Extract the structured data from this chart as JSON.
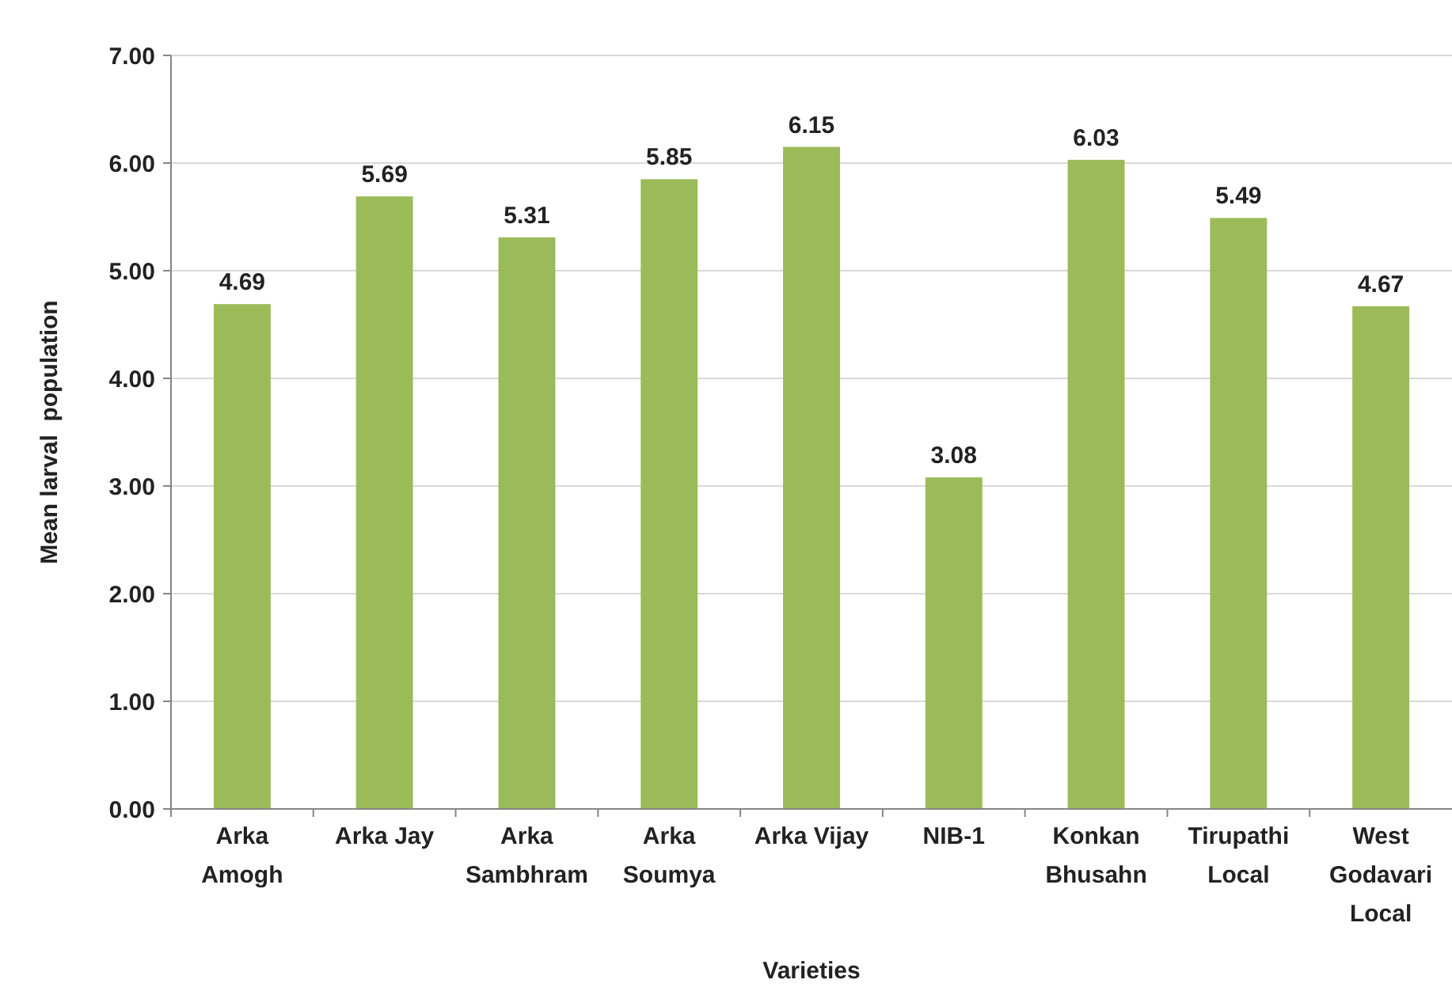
{
  "chart_data": {
    "type": "bar",
    "xlabel": "Varieties",
    "ylabel": "Mean larval  population",
    "categories": [
      "Arka Amogh",
      "Arka Jay",
      "Arka Sambhram",
      "Arka Soumya",
      "Arka Vijay",
      "NIB-1",
      "Konkan Bhusahn",
      "Tirupathi Local",
      "West Godavari Local"
    ],
    "values": [
      4.69,
      5.69,
      5.31,
      5.85,
      6.15,
      3.08,
      6.03,
      5.49,
      4.67
    ],
    "color": "#9bbb59",
    "ylim": [
      0,
      7
    ],
    "yticks": [
      {
        "value": 0,
        "label": "0.00"
      },
      {
        "value": 1,
        "label": "1.00"
      },
      {
        "value": 2,
        "label": "2.00"
      },
      {
        "value": 3,
        "label": "3.00"
      },
      {
        "value": 4,
        "label": "4.00"
      },
      {
        "value": 5,
        "label": "5.00"
      },
      {
        "value": 6,
        "label": "6.00"
      },
      {
        "value": 7,
        "label": "7.00"
      }
    ],
    "grid": "y",
    "data_labels": true
  }
}
